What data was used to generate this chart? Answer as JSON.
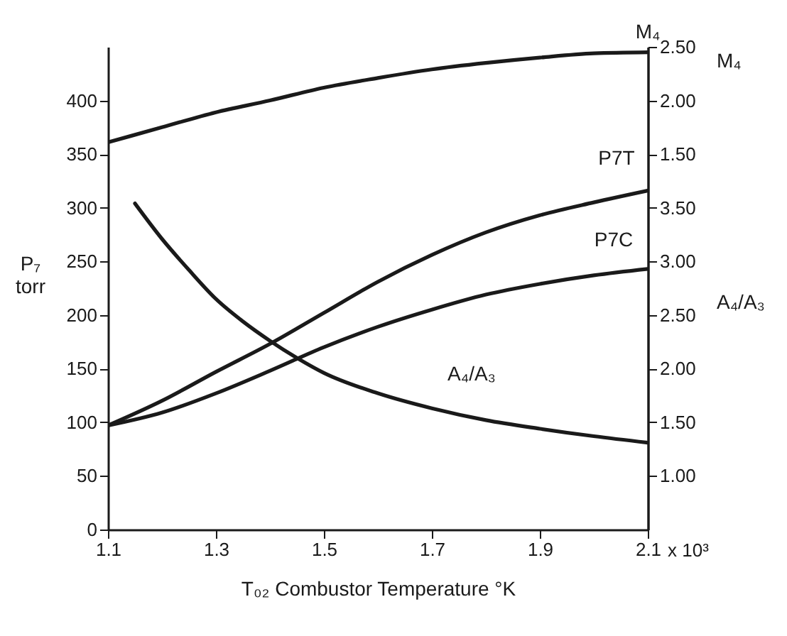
{
  "chart_data": {
    "type": "line",
    "xlabel": "T₀₂ Combustor Temperature °K",
    "ylabel": "P₇ torr",
    "y2label": "M₄",
    "y3label": "A₄/A₃",
    "annotations": [
      "x 10³"
    ],
    "xlim": [
      1.1,
      2.1
    ],
    "xticks": [
      1.1,
      1.3,
      1.5,
      1.7,
      1.9,
      2.1
    ],
    "ylim": [
      0,
      450
    ],
    "yticks": [
      0,
      50,
      100,
      150,
      200,
      250,
      300,
      350,
      400
    ],
    "y2lim": [
      -2.0,
      2.5
    ],
    "y2ticks": [
      {
        "value": 1.5,
        "label": "1.50"
      },
      {
        "value": 2.0,
        "label": "2.00"
      },
      {
        "value": 2.5,
        "label": "2.50"
      }
    ],
    "y3lim": [
      0.5,
      5.0
    ],
    "y3ticks": [
      {
        "value": 1.0,
        "label": "1.00"
      },
      {
        "value": 1.5,
        "label": "1.50"
      },
      {
        "value": 2.0,
        "label": "2.00"
      },
      {
        "value": 2.5,
        "label": "2.50"
      },
      {
        "value": 3.0,
        "label": "3.00"
      },
      {
        "value": 3.5,
        "label": "3.50"
      }
    ],
    "grid": false,
    "series": [
      {
        "name": "M₄",
        "axis": "y2",
        "color": "#1a1a1a",
        "x": [
          1.1,
          1.2,
          1.3,
          1.4,
          1.5,
          1.6,
          1.7,
          1.8,
          1.9,
          2.0,
          2.1
        ],
        "values": [
          1.61,
          1.75,
          1.89,
          2.0,
          2.12,
          2.21,
          2.29,
          2.35,
          2.4,
          2.44,
          2.45
        ]
      },
      {
        "name": "P7T",
        "color": "#1a1a1a",
        "x": [
          1.1,
          1.2,
          1.3,
          1.4,
          1.5,
          1.6,
          1.7,
          1.8,
          1.9,
          2.0,
          2.1
        ],
        "values": [
          97,
          120,
          147,
          173,
          202,
          231,
          256,
          277,
          293,
          305,
          316
        ]
      },
      {
        "name": "P7C",
        "color": "#1a1a1a",
        "x": [
          1.1,
          1.2,
          1.3,
          1.4,
          1.5,
          1.6,
          1.7,
          1.8,
          1.9,
          2.0,
          2.1
        ],
        "values": [
          97,
          109,
          127,
          148,
          170,
          189,
          205,
          219,
          229,
          237,
          243
        ]
      },
      {
        "name": "A₄/A₃",
        "axis": "y3",
        "color": "#1a1a1a",
        "x": [
          1.15,
          1.2,
          1.25,
          1.3,
          1.35,
          1.4,
          1.45,
          1.5,
          1.6,
          1.7,
          1.8,
          1.9,
          2.0,
          2.1
        ],
        "values": [
          3.54,
          3.21,
          2.92,
          2.65,
          2.44,
          2.26,
          2.1,
          1.96,
          1.77,
          1.63,
          1.52,
          1.44,
          1.37,
          1.31
        ]
      }
    ]
  }
}
